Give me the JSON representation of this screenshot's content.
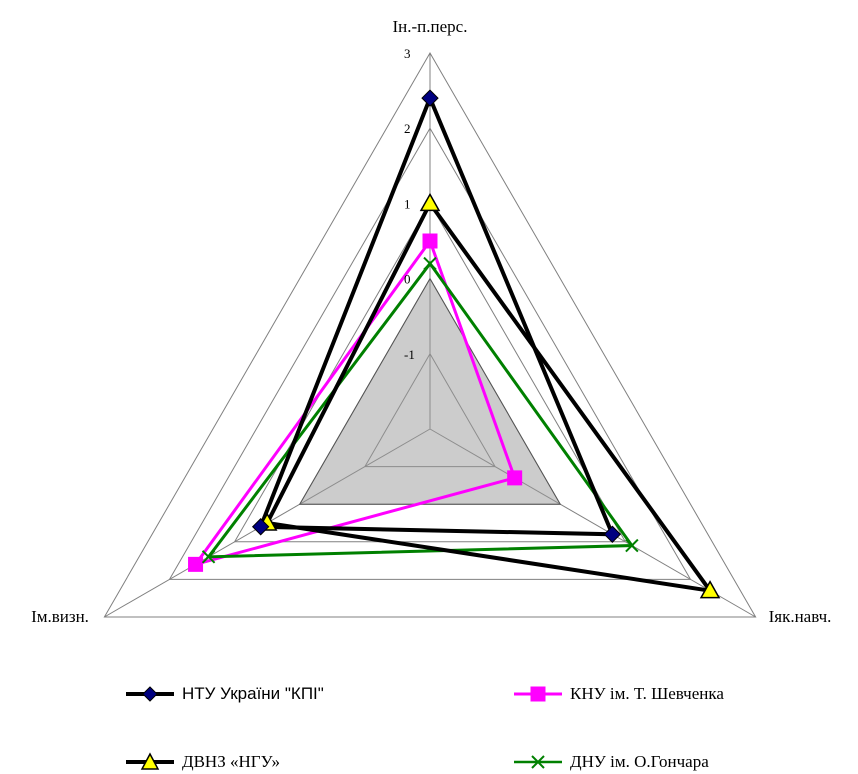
{
  "chart_data": {
    "type": "radar",
    "axes": [
      "Ін.-п.перс.",
      "Іяк.навч.",
      "Ім.визн."
    ],
    "ticks": [
      "-1",
      "0",
      "1",
      "2",
      "3"
    ],
    "rlim": [
      -2,
      3
    ],
    "series": [
      {
        "name": "НТУ України \"КПІ\"",
        "values": [
          2.4,
          0.8,
          0.6
        ],
        "color": "#000000",
        "marker": "diamond",
        "marker_color": "#000080",
        "line_width": 4
      },
      {
        "name": "КНУ ім. Т. Шевченка",
        "values": [
          0.5,
          -0.7,
          1.6
        ],
        "color": "#ff00ff",
        "marker": "square",
        "marker_color": "#ff00ff",
        "line_width": 3
      },
      {
        "name": "ДВНЗ «НГУ»",
        "values": [
          1.0,
          2.3,
          0.5
        ],
        "color": "#000000",
        "marker": "triangle",
        "marker_color": "#ffff00",
        "line_width": 4
      },
      {
        "name": "ДНУ ім. О.Гончара",
        "values": [
          0.2,
          1.1,
          1.4
        ],
        "color": "#008000",
        "marker": "x",
        "marker_color": "#008000",
        "line_width": 3
      }
    ],
    "shaded_region": {
      "values": [
        0,
        0,
        0
      ],
      "color": "#999999",
      "opacity": 0.5
    },
    "legend_position": "bottom"
  }
}
